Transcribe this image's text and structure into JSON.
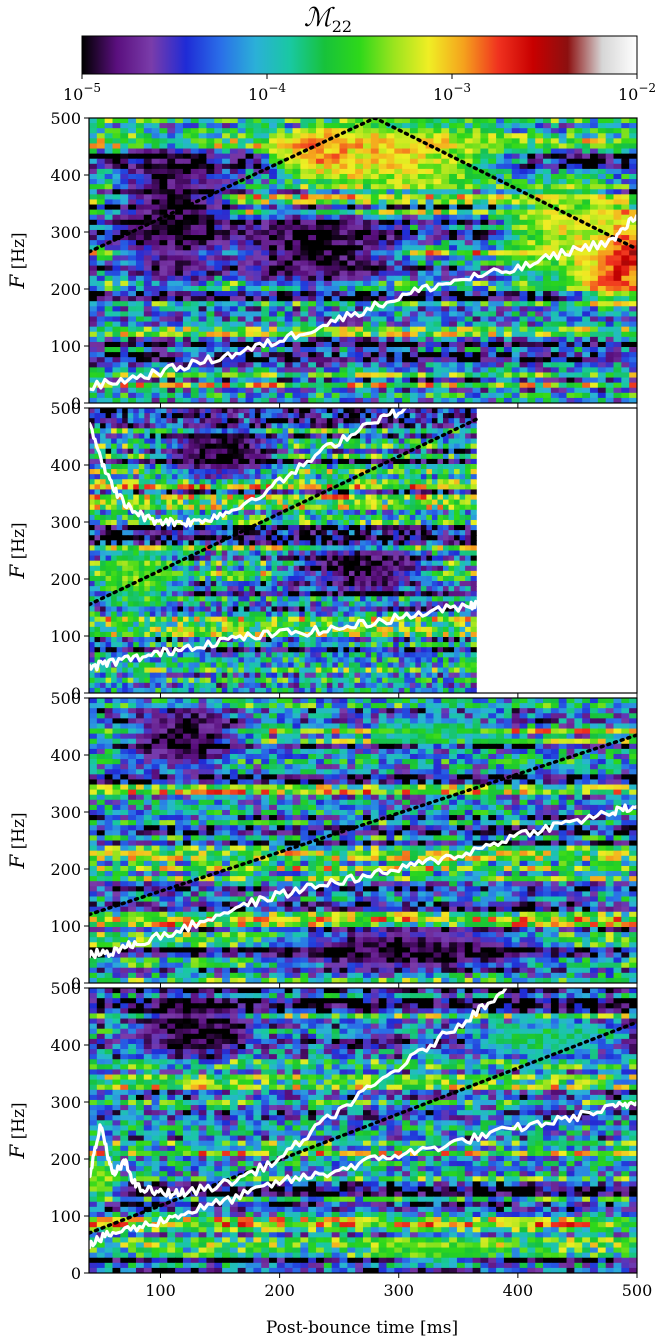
{
  "chart_data": {
    "type": "heatmap",
    "colorbar": {
      "title_main": "ℳ",
      "title_sub": "22",
      "scale": "log",
      "range": [
        1e-05,
        0.01
      ],
      "tick_labels": [
        {
          "base": "10",
          "exp": "−5"
        },
        {
          "base": "10",
          "exp": "−4"
        },
        {
          "base": "10",
          "exp": "−3"
        },
        {
          "base": "10",
          "exp": "−2"
        }
      ],
      "tick_values": [
        1e-05,
        0.0001,
        0.001,
        0.01
      ],
      "colormap": [
        "#000000",
        "#5a0f7e",
        "#7a3caa",
        "#1f2bd6",
        "#2a6fe8",
        "#2bb0d8",
        "#19c8a2",
        "#17c23a",
        "#2ed81a",
        "#9be41e",
        "#f0ee24",
        "#f5a21d",
        "#f0321f",
        "#c80000",
        "#8c1010",
        "#d6d6d6",
        "#ffffff"
      ]
    },
    "x_axis": {
      "label": "Post-bounce time [ms]",
      "range": [
        40,
        500
      ],
      "ticks": [
        100,
        200,
        300,
        400,
        500
      ]
    },
    "y_axis": {
      "label_symbol": "F",
      "label_unit": " [Hz]",
      "range": [
        0,
        500
      ],
      "ticks": [
        0,
        100,
        200,
        300,
        400,
        500
      ]
    },
    "panels": [
      {
        "x_end": 500,
        "x_tick_labels_shown": false,
        "dotted_line": {
          "x": [
            40,
            280,
            500
          ],
          "y": [
            265,
            500,
            270
          ]
        },
        "white_lines": [
          {
            "x": [
              40,
              80,
              120,
              160,
              200,
              240,
              280,
              320,
              360,
              400,
              440,
              480,
              500
            ],
            "y": [
              28,
              45,
              65,
              85,
              110,
              140,
              170,
              200,
              220,
              235,
              265,
              285,
              330
            ]
          }
        ],
        "features": [
          {
            "x": 245,
            "y": 440,
            "rx": 70,
            "ry": 55,
            "value": 0.003
          },
          {
            "x": 300,
            "y": 430,
            "rx": 120,
            "ry": 80,
            "value": 0.0008
          },
          {
            "x": 480,
            "y": 260,
            "rx": 45,
            "ry": 110,
            "value": 0.005
          },
          {
            "x": 440,
            "y": 300,
            "rx": 70,
            "ry": 120,
            "value": 0.0006
          },
          {
            "x": 110,
            "y": 330,
            "rx": 60,
            "ry": 160,
            "value": 1e-05
          },
          {
            "x": 230,
            "y": 270,
            "rx": 90,
            "ry": 80,
            "value": 1e-05
          }
        ]
      },
      {
        "x_end": 365,
        "x_tick_labels_shown": false,
        "dotted_line": {
          "x": [
            40,
            365
          ],
          "y": [
            155,
            480
          ]
        },
        "white_lines": [
          {
            "x": [
              40,
              55,
              70,
              90,
              110,
              130,
              160,
              200,
              240,
              280,
              310
            ],
            "y": [
              480,
              380,
              330,
              305,
              300,
              300,
              320,
              370,
              430,
              480,
              500
            ]
          },
          {
            "x": [
              40,
              60,
              90,
              120,
              160,
              200,
              240,
              280,
              320,
              360,
              365
            ],
            "y": [
              45,
              55,
              65,
              80,
              95,
              105,
              110,
              125,
              140,
              155,
              155
            ]
          }
        ],
        "features": [
          {
            "x": 80,
            "y": 200,
            "rx": 45,
            "ry": 70,
            "value": 0.00035
          },
          {
            "x": 150,
            "y": 420,
            "rx": 60,
            "ry": 60,
            "value": 1e-05
          },
          {
            "x": 270,
            "y": 220,
            "rx": 70,
            "ry": 50,
            "value": 1e-05
          }
        ]
      },
      {
        "x_end": 500,
        "x_tick_labels_shown": false,
        "dotted_line": {
          "x": [
            40,
            500
          ],
          "y": [
            120,
            435
          ]
        },
        "white_lines": [
          {
            "x": [
              40,
              60,
              80,
              120,
              160,
              200,
              240,
              280,
              320,
              360,
              400,
              440,
              480,
              500
            ],
            "y": [
              50,
              55,
              70,
              95,
              130,
              155,
              175,
              190,
              210,
              230,
              260,
              280,
              300,
              310
            ]
          }
        ],
        "features": [
          {
            "x": 120,
            "y": 430,
            "rx": 60,
            "ry": 70,
            "value": 1e-05
          },
          {
            "x": 310,
            "y": 60,
            "rx": 150,
            "ry": 50,
            "value": 1e-05
          },
          {
            "x": 330,
            "y": 440,
            "rx": 70,
            "ry": 30,
            "value": 0.0002
          }
        ]
      },
      {
        "x_end": 500,
        "x_tick_labels_shown": true,
        "dotted_line": {
          "x": [
            40,
            500
          ],
          "y": [
            70,
            440
          ]
        },
        "white_lines": [
          {
            "x": [
              40,
              50,
              60,
              70,
              80,
              100,
              120,
              160,
              200,
              240,
              280,
              320,
              360,
              390
            ],
            "y": [
              170,
              260,
              170,
              195,
              150,
              140,
              140,
              160,
              200,
              270,
              330,
              390,
              450,
              500
            ]
          },
          {
            "x": [
              40,
              60,
              90,
              120,
              160,
              200,
              240,
              280,
              320,
              360,
              400,
              440,
              480,
              500
            ],
            "y": [
              50,
              70,
              85,
              105,
              130,
              160,
              175,
              200,
              215,
              235,
              255,
              270,
              290,
              300
            ]
          }
        ],
        "features": [
          {
            "x": 130,
            "y": 430,
            "rx": 60,
            "ry": 70,
            "value": 1e-05
          },
          {
            "x": 50,
            "y": 160,
            "rx": 20,
            "ry": 50,
            "value": 0.0005
          },
          {
            "x": 330,
            "y": 40,
            "rx": 60,
            "ry": 30,
            "value": 0.0004
          },
          {
            "x": 420,
            "y": 410,
            "rx": 70,
            "ry": 40,
            "value": 0.0002
          }
        ]
      }
    ]
  }
}
